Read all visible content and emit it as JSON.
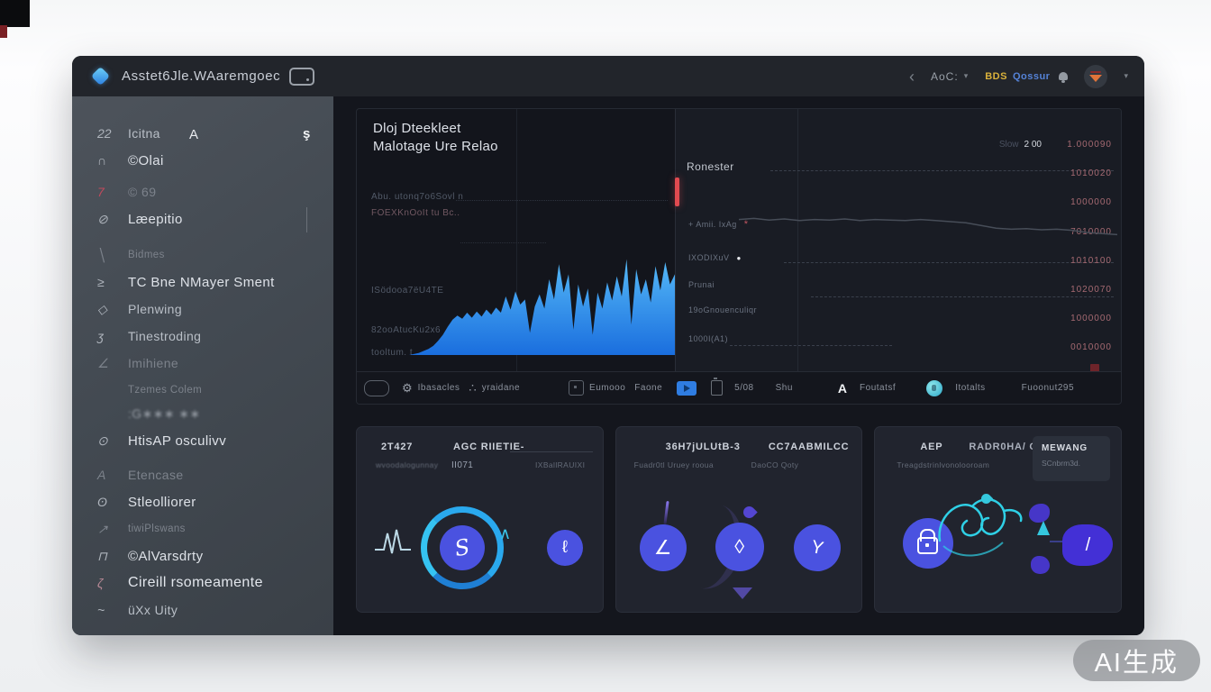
{
  "topbar": {
    "title": "Asstet6Jle.WAaremgoec",
    "back": "‹",
    "dropdown_label": "AoC:",
    "dropdown_caret": "▾",
    "badge_yellow": "BDS",
    "badge_blue": "Qossur",
    "avatar_caret": "▾"
  },
  "sidebar": {
    "items": [
      {
        "icon": "22",
        "label": "Icitna",
        "variant": "",
        "extra_mid": "A",
        "extra_right": "ş"
      },
      {
        "icon": "∩",
        "label": "©Olai",
        "variant": "bright"
      },
      {
        "icon": "7",
        "icon_color": "#c04a5c",
        "label": "© 69",
        "variant": "dim"
      },
      {
        "icon": "⊘",
        "label": "Læepitio",
        "variant": "bright"
      },
      {
        "icon": "╲",
        "label": "Bidmes",
        "variant": "dim small"
      },
      {
        "icon": "≥",
        "label": "TC Bne NMayer Sment",
        "variant": "bright"
      },
      {
        "icon": "◇",
        "label": "Plenwing",
        "variant": ""
      },
      {
        "icon": "ʒ",
        "label": "Tinestroding",
        "variant": ""
      },
      {
        "icon": "∠",
        "label": "Imihiene",
        "variant": "dim"
      },
      {
        "icon": "",
        "label": "Tzemes   Colem",
        "variant": "dim small"
      },
      {
        "icon": "",
        "label": ":G∗∗∗  ∗∗",
        "variant": "blur"
      },
      {
        "icon": "⊙",
        "label": "HtisAP osculivv",
        "variant": "bright"
      },
      {
        "icon": "A",
        "label": "Etencase",
        "variant": "dim"
      },
      {
        "icon": "ʘ",
        "label": "Stleolliorer",
        "variant": "bright"
      },
      {
        "icon": "↗",
        "label": "tiwiPlswans",
        "variant": "dim small"
      },
      {
        "icon": "⊓",
        "label": "©AlVarsdrty",
        "variant": "bright"
      },
      {
        "icon": "ζ",
        "icon_color": "#b98a96",
        "label": "Cireill rsomeamente",
        "variant": "large"
      },
      {
        "icon": "~",
        "label": "üXx Uity",
        "variant": ""
      }
    ]
  },
  "left_chart": {
    "title_line1": "Dloj Dteekleet",
    "title_line2": "Malotage Ure Relao",
    "axis_labels": [
      {
        "text": "Abu. utonq7o6Sovl n",
        "pink": false
      },
      {
        "text": "FOEXKnOoIt tu Bc..",
        "pink": true
      },
      {
        "text": "ISödooa7ëU4TE",
        "pink": false
      },
      {
        "text": "82ooAtucKu2x6",
        "pink": false
      },
      {
        "text": "tooltum. t",
        "pink": false
      }
    ]
  },
  "right_chart": {
    "label": "Ronester",
    "tick_prefix_dim": "Slow",
    "tick_prefix": "2 00",
    "ticks": [
      "1.000090",
      "1010020",
      "1000000",
      "7010000",
      "1010100",
      "1020070",
      "1000000",
      "0010000"
    ],
    "row_labels": [
      {
        "label": "+ Amii. IxAg",
        "marker": "star"
      },
      {
        "label": "IXODIXuV",
        "marker": "dot"
      },
      {
        "label": "Prunai",
        "marker": ""
      },
      {
        "label": "19oGnouenculiqr",
        "marker": ""
      },
      {
        "label": "1000I(A1)",
        "marker": ""
      }
    ]
  },
  "toolbar": {
    "items": [
      {
        "kind": "rect",
        "name": "frame-icon"
      },
      {
        "kind": "glyph",
        "glyph": "⚙",
        "name": "settings-icon"
      },
      {
        "kind": "text",
        "label": "Ibasacles"
      },
      {
        "kind": "glyph",
        "glyph": "∴",
        "name": "spark-icon"
      },
      {
        "kind": "text",
        "label": "yraidane"
      },
      {
        "kind": "box",
        "name": "panel-icon"
      },
      {
        "kind": "text",
        "label": "Eumooo"
      },
      {
        "kind": "text",
        "label": "Faone"
      },
      {
        "kind": "send",
        "name": "send-icon"
      },
      {
        "kind": "battery",
        "name": "battery-icon"
      },
      {
        "kind": "text",
        "label": "5/08"
      },
      {
        "kind": "text",
        "label": "Shu"
      },
      {
        "kind": "glyphA",
        "glyph": "A",
        "name": "hand-icon"
      },
      {
        "kind": "text",
        "label": "Foutatsf"
      },
      {
        "kind": "globe",
        "name": "globe-icon"
      },
      {
        "kind": "text",
        "label": "Itotalts"
      },
      {
        "kind": "text",
        "label": "Fuoonut295"
      }
    ]
  },
  "cards": [
    {
      "h1a": "2T427",
      "h1b": "AGC RIIETIE-",
      "h2a": "wvoodalogunnay",
      "h2b": "II071",
      "h2c": "IXBallRAUIXI",
      "ring_glyph": "S",
      "dot_glyph": "ℓ"
    },
    {
      "h1a": "36H7jULUtB-3",
      "h1b": "CC7AABMILCC",
      "h2a": "Fuadr0tl Uruey rooua",
      "h2b": "DaoCO Qoty",
      "g1": "∠",
      "g2": "◊",
      "g3": "Y"
    },
    {
      "h1a": "AEP",
      "h1b": "RADR0HA/ GX",
      "h2a": "Treagdstrinlvonolooroam",
      "box1": "MEWANG",
      "box2": "SCnbrm3d.",
      "blob_glyph": "/"
    }
  ],
  "chart_data": [
    {
      "type": "area",
      "title": "Dloj Dteekleet Malotage Ure Relao",
      "values": [
        0,
        1,
        2,
        4,
        6,
        9,
        14,
        20,
        28,
        35,
        39,
        36,
        42,
        37,
        43,
        38,
        45,
        40,
        47,
        42,
        58,
        45,
        63,
        50,
        55,
        22,
        48,
        60,
        46,
        75,
        55,
        90,
        62,
        80,
        25,
        70,
        48,
        66,
        20,
        62,
        46,
        72,
        54,
        78,
        58,
        95,
        30,
        85,
        60,
        75,
        52,
        88,
        64,
        92,
        70,
        80
      ],
      "ylim": [
        0,
        100
      ],
      "color_top": "#55b9f7",
      "color_bottom": "#1a6ede"
    },
    {
      "type": "line",
      "label": "Ronester",
      "points": [
        [
          0,
          46
        ],
        [
          4,
          44
        ],
        [
          8,
          47
        ],
        [
          12,
          45
        ],
        [
          16,
          48
        ],
        [
          20,
          46
        ],
        [
          24,
          47
        ],
        [
          28,
          45
        ],
        [
          32,
          48
        ],
        [
          36,
          46
        ],
        [
          40,
          47
        ],
        [
          44,
          48
        ],
        [
          48,
          46
        ],
        [
          52,
          48
        ],
        [
          56,
          50
        ],
        [
          60,
          52
        ],
        [
          64,
          57
        ],
        [
          68,
          62
        ],
        [
          72,
          64
        ],
        [
          76,
          63
        ],
        [
          80,
          65
        ],
        [
          84,
          64
        ],
        [
          88,
          66
        ],
        [
          92,
          70
        ],
        [
          96,
          72
        ],
        [
          100,
          74
        ]
      ],
      "color": "#474d58"
    }
  ],
  "colors": {
    "accent_blue": "#2f9df2",
    "purple": "#4a52e0",
    "ring_cyan": "#2aa9ee",
    "alert_red": "#e04a50",
    "tick_pink": "#a66a72",
    "badge_yellow": "#d9b13b",
    "badge_blue": "#5583d8",
    "teal": "#35c8de"
  },
  "watermark": "AI生成"
}
